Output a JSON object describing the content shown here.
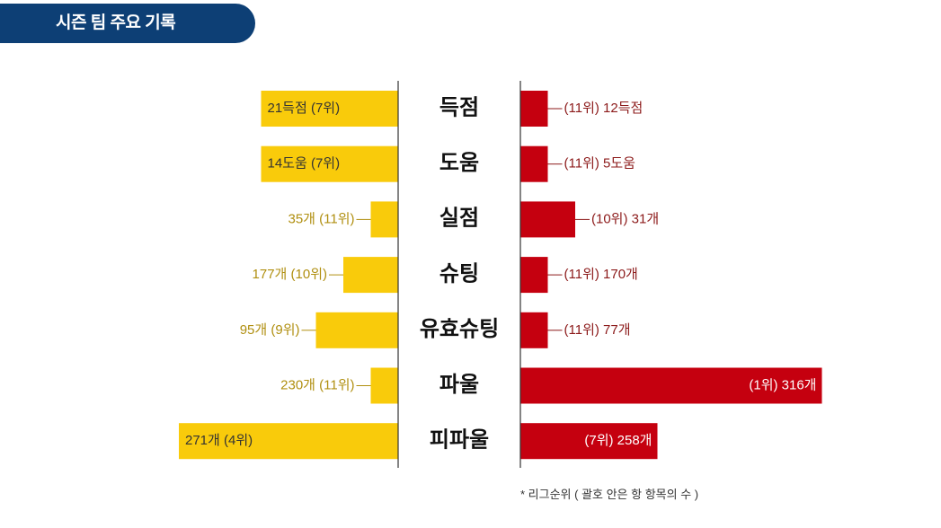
{
  "header": {
    "title": "시즌 팀 주요 기록"
  },
  "footnote": "* 리그순위 ( 괄호 안은 항 항목의 수 )",
  "colors": {
    "header_bg": "#0d3f75",
    "left_bar": "#f9cb0b",
    "left_label_outside": "#b08f10",
    "right_bar": "#c5000f",
    "right_label_outside": "#8c1a1a",
    "label_inside": "#ffffff",
    "axis": "#333333"
  },
  "chart_data": {
    "type": "bar",
    "layout": "butterfly",
    "categories": [
      "득점",
      "도움",
      "실점",
      "슈팅",
      "유효슈팅",
      "파울",
      "피파울"
    ],
    "series": [
      {
        "values": [
          21,
          14,
          35,
          177,
          95,
          230,
          271
        ],
        "ranks": [
          7,
          7,
          11,
          10,
          9,
          11,
          4
        ],
        "labels": [
          "21득점 (7위)",
          "14도움 (7위)",
          "35개 (11위)",
          "177개 (10위)",
          "95개 (9위)",
          "230개 (11위)",
          "271개 (4위)"
        ]
      },
      {
        "values": [
          12,
          5,
          31,
          170,
          77,
          316,
          258
        ],
        "ranks": [
          11,
          11,
          10,
          11,
          11,
          1,
          7
        ],
        "labels": [
          "(11위) 12득점",
          "(11위) 5도움",
          "(10위) 31개",
          "(11위) 170개",
          "(11위) 77개",
          "(1위) 316개",
          "(7위) 258개"
        ]
      }
    ],
    "bar_scale": "rank"
  }
}
